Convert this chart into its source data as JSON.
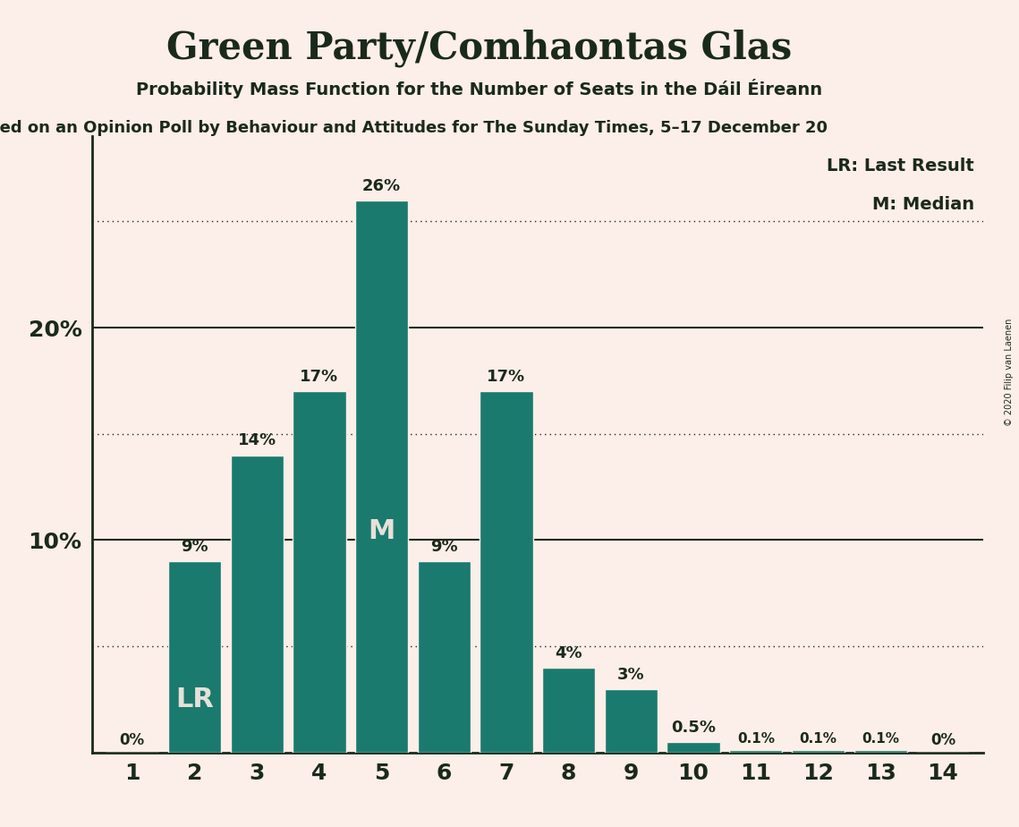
{
  "title": "Green Party/Comhaontas Glas",
  "subtitle": "Probability Mass Function for the Number of Seats in the Dáil Éireann",
  "subtitle2": "sed on an Opinion Poll by Behaviour and Attitudes for The Sunday Times, 5–17 December 20",
  "copyright": "© 2020 Filip van Laenen",
  "seats": [
    1,
    2,
    3,
    4,
    5,
    6,
    7,
    8,
    9,
    10,
    11,
    12,
    13,
    14
  ],
  "probabilities": [
    0.0,
    9.0,
    14.0,
    17.0,
    26.0,
    9.0,
    17.0,
    4.0,
    3.0,
    0.5,
    0.1,
    0.1,
    0.1,
    0.0
  ],
  "bar_color": "#1a7a6e",
  "background_color": "#fceee8",
  "text_color": "#1a2a1a",
  "label_color_inside": "#e8e0d8",
  "lr_seat": 2,
  "median_seat": 5,
  "solid_gridlines": [
    10,
    20
  ],
  "dotted_gridlines": [
    5,
    15,
    25
  ],
  "ylim": [
    0,
    29
  ],
  "bar_labels": [
    "0%",
    "9%",
    "14%",
    "17%",
    "26%",
    "9%",
    "17%",
    "4%",
    "3%",
    "0.5%",
    "0.1%",
    "0.1%",
    "0.1%",
    "0%"
  ]
}
